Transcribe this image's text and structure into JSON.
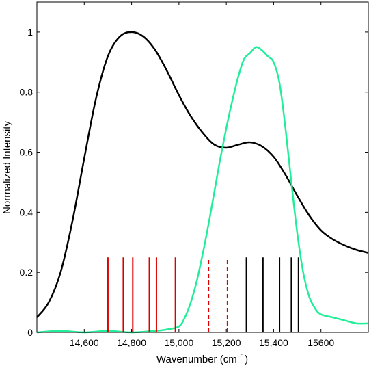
{
  "chart_data": {
    "type": "line",
    "title": "",
    "xlabel": "Wavenumber (cm",
    "xlabel_sup": "−1",
    "xlabel_close": ")",
    "ylabel": "Normalized Intensity",
    "xlim": [
      14400,
      15800
    ],
    "ylim": [
      0,
      1.1
    ],
    "grid": false,
    "x_ticks": [
      {
        "value": 14600,
        "label": "14,600"
      },
      {
        "value": 14800,
        "label": "14,800"
      },
      {
        "value": 15000,
        "label": "15,000"
      },
      {
        "value": 15200,
        "label": "15,200"
      },
      {
        "value": 15400,
        "label": "15,400"
      },
      {
        "value": 15600,
        "label": "15600"
      }
    ],
    "y_ticks": [
      {
        "value": 0,
        "label": "0"
      },
      {
        "value": 0.2,
        "label": "0.2"
      },
      {
        "value": 0.4,
        "label": "0.4"
      },
      {
        "value": 0.6,
        "label": "0.6"
      },
      {
        "value": 0.8,
        "label": "0.8"
      },
      {
        "value": 1.0,
        "label": "1"
      }
    ],
    "series": [
      {
        "color": "#000000",
        "style": "solid",
        "x": [
          14400,
          14450,
          14500,
          14550,
          14600,
          14650,
          14700,
          14750,
          14800,
          14850,
          14900,
          14950,
          15000,
          15050,
          15100,
          15150,
          15200,
          15250,
          15300,
          15350,
          15400,
          15450,
          15500,
          15550,
          15600,
          15650,
          15700,
          15750,
          15800
        ],
        "y": [
          0.05,
          0.1,
          0.2,
          0.37,
          0.58,
          0.78,
          0.92,
          0.985,
          1.0,
          0.985,
          0.94,
          0.87,
          0.79,
          0.72,
          0.665,
          0.625,
          0.615,
          0.625,
          0.633,
          0.62,
          0.585,
          0.525,
          0.455,
          0.39,
          0.34,
          0.31,
          0.29,
          0.275,
          0.265
        ]
      },
      {
        "color": "#22ee99",
        "style": "solid",
        "x": [
          14400,
          14500,
          14600,
          14700,
          14800,
          14900,
          14950,
          15000,
          15025,
          15050,
          15075,
          15100,
          15125,
          15150,
          15175,
          15200,
          15225,
          15250,
          15275,
          15300,
          15325,
          15350,
          15375,
          15400,
          15425,
          15450,
          15475,
          15500,
          15525,
          15550,
          15575,
          15600,
          15650,
          15700,
          15750,
          15800
        ],
        "y": [
          0.0,
          0.005,
          0.0,
          0.005,
          0.0,
          0.005,
          0.01,
          0.02,
          0.05,
          0.1,
          0.17,
          0.26,
          0.36,
          0.47,
          0.58,
          0.68,
          0.77,
          0.85,
          0.91,
          0.93,
          0.95,
          0.94,
          0.92,
          0.9,
          0.83,
          0.68,
          0.5,
          0.33,
          0.2,
          0.12,
          0.08,
          0.06,
          0.05,
          0.04,
          0.03,
          0.03
        ]
      }
    ],
    "vertical_lines": [
      {
        "x": 14700,
        "height": 0.25,
        "color": "#dd0000",
        "style": "solid"
      },
      {
        "x": 14765,
        "height": 0.25,
        "color": "#dd0000",
        "style": "solid"
      },
      {
        "x": 14805,
        "height": 0.25,
        "color": "#dd0000",
        "style": "solid"
      },
      {
        "x": 14875,
        "height": 0.25,
        "color": "#dd0000",
        "style": "solid"
      },
      {
        "x": 14905,
        "height": 0.25,
        "color": "#dd0000",
        "style": "solid"
      },
      {
        "x": 14985,
        "height": 0.25,
        "color": "#dd0000",
        "style": "solid"
      },
      {
        "x": 15125,
        "height": 0.25,
        "color": "#dd0000",
        "style": "dashed"
      },
      {
        "x": 15205,
        "height": 0.25,
        "color": "#dd0000",
        "style": "dashed"
      },
      {
        "x": 15285,
        "height": 0.25,
        "color": "#000000",
        "style": "solid"
      },
      {
        "x": 15355,
        "height": 0.25,
        "color": "#000000",
        "style": "solid"
      },
      {
        "x": 15425,
        "height": 0.25,
        "color": "#000000",
        "style": "solid"
      },
      {
        "x": 15475,
        "height": 0.25,
        "color": "#000000",
        "style": "solid"
      },
      {
        "x": 15505,
        "height": 0.25,
        "color": "#000000",
        "style": "solid"
      }
    ]
  }
}
